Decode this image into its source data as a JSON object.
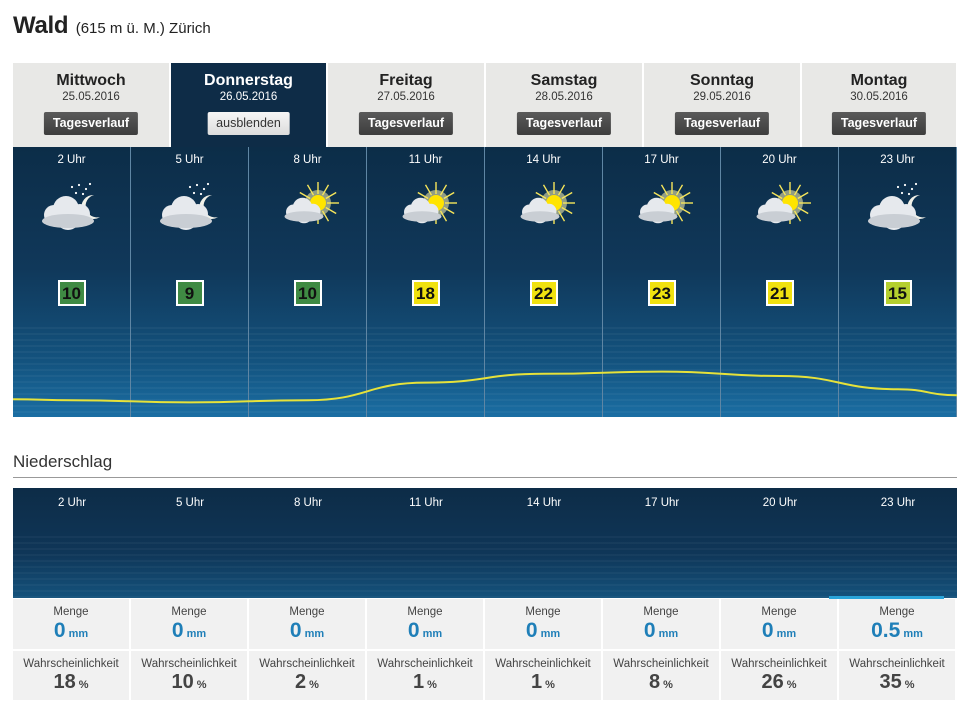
{
  "header": {
    "place": "Wald",
    "meta": "(615 m ü. M.) Zürich"
  },
  "days": [
    {
      "name": "Mittwoch",
      "date": "25.05.2016",
      "button": "Tagesverlauf",
      "active": false
    },
    {
      "name": "Donnerstag",
      "date": "26.05.2016",
      "button": "ausblenden",
      "active": true
    },
    {
      "name": "Freitag",
      "date": "27.05.2016",
      "button": "Tagesverlauf",
      "active": false
    },
    {
      "name": "Samstag",
      "date": "28.05.2016",
      "button": "Tagesverlauf",
      "active": false
    },
    {
      "name": "Sonntag",
      "date": "29.05.2016",
      "button": "Tagesverlauf",
      "active": false
    },
    {
      "name": "Montag",
      "date": "30.05.2016",
      "button": "Tagesverlauf",
      "active": false
    }
  ],
  "hours": [
    {
      "label": "2 Uhr",
      "icon": "cloud-moon-icon",
      "temp": "10",
      "temp_color": "#3f8a43"
    },
    {
      "label": "5 Uhr",
      "icon": "cloud-moon-icon",
      "temp": "9",
      "temp_color": "#3f8a43"
    },
    {
      "label": "8 Uhr",
      "icon": "sun-cloud-icon",
      "temp": "10",
      "temp_color": "#3f8a43"
    },
    {
      "label": "11 Uhr",
      "icon": "sun-cloud-icon",
      "temp": "18",
      "temp_color": "#f0e10f"
    },
    {
      "label": "14 Uhr",
      "icon": "sun-cloud-icon",
      "temp": "22",
      "temp_color": "#f0e10f"
    },
    {
      "label": "17 Uhr",
      "icon": "sun-cloud-icon",
      "temp": "23",
      "temp_color": "#f0e10f"
    },
    {
      "label": "20 Uhr",
      "icon": "sun-cloud-icon",
      "temp": "21",
      "temp_color": "#f0e10f"
    },
    {
      "label": "23 Uhr",
      "icon": "cloud-moon-icon",
      "temp": "15",
      "temp_color": "#b5cf2e"
    }
  ],
  "precipitation": {
    "title": "Niederschlag",
    "amount_label": "Menge",
    "amount_unit": "mm",
    "prob_label": "Wahrscheinlichkeit",
    "prob_unit": "%",
    "hours": [
      {
        "label": "2 Uhr",
        "amount": "0",
        "prob": "18"
      },
      {
        "label": "5 Uhr",
        "amount": "0",
        "prob": "10"
      },
      {
        "label": "8 Uhr",
        "amount": "0",
        "prob": "2"
      },
      {
        "label": "11 Uhr",
        "amount": "0",
        "prob": "1"
      },
      {
        "label": "14 Uhr",
        "amount": "0",
        "prob": "1"
      },
      {
        "label": "17 Uhr",
        "amount": "0",
        "prob": "8"
      },
      {
        "label": "20 Uhr",
        "amount": "0",
        "prob": "26"
      },
      {
        "label": "23 Uhr",
        "amount": "0.5",
        "prob": "35"
      }
    ]
  },
  "colors": {
    "accent": "#1f7fb8",
    "active_tab": "#0e2c47",
    "curve": "#e6e23a"
  }
}
